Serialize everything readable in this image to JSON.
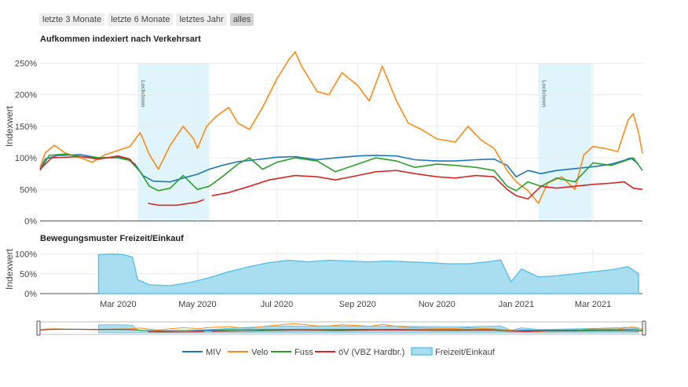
{
  "range_selector": {
    "buttons": [
      {
        "label": "letzte 3 Monate",
        "active": false
      },
      {
        "label": "letzte 6 Monate",
        "active": false
      },
      {
        "label": "letztes Jahr",
        "active": false
      },
      {
        "label": "alles",
        "active": true
      }
    ]
  },
  "colors": {
    "miv": "#1f77b4",
    "velo": "#ff8c1a",
    "fuss": "#2ca02c",
    "oev": "#d62728",
    "freizeit": "#5bc0e6",
    "freizeit_fill": "#a9def1",
    "lockdown": "#dff5fb",
    "grid": "#ececec"
  },
  "chart_data": [
    {
      "type": "line",
      "title": "Aufkommen indexiert nach Verkehrsart",
      "ylabel": "Indexwert",
      "ylim": [
        0,
        275
      ],
      "y_ticks": [
        {
          "v": 0,
          "label": "0%"
        },
        {
          "v": 50,
          "label": "50%"
        },
        {
          "v": 100,
          "label": "100%"
        },
        {
          "v": 150,
          "label": "150%"
        },
        {
          "v": 200,
          "label": "200%"
        },
        {
          "v": 250,
          "label": "250%"
        }
      ],
      "x_ticks": [
        {
          "date": "2020-03-01",
          "label": "Mar 2020"
        },
        {
          "date": "2020-05-01",
          "label": "May 2020"
        },
        {
          "date": "2020-07-01",
          "label": "Jul 2020"
        },
        {
          "date": "2020-09-01",
          "label": "Sep 2020"
        },
        {
          "date": "2020-11-01",
          "label": "Nov 2020"
        },
        {
          "date": "2021-01-01",
          "label": "Jan 2021"
        },
        {
          "date": "2021-03-01",
          "label": "Mar 2021"
        }
      ],
      "shapes": [
        {
          "x0": "2020-03-16",
          "x1": "2020-05-10",
          "label": "Lockdown"
        },
        {
          "x0": "2021-01-18",
          "x1": "2021-02-28",
          "label": "Lockdown"
        }
      ],
      "series": [
        {
          "name": "MIV",
          "color_key": "miv",
          "points": [
            [
              "2020-01-01",
              82
            ],
            [
              "2020-01-05",
              98
            ],
            [
              "2020-01-15",
              104
            ],
            [
              "2020-02-01",
              105
            ],
            [
              "2020-02-15",
              100
            ],
            [
              "2020-03-01",
              101
            ],
            [
              "2020-03-08",
              98
            ],
            [
              "2020-03-14",
              90
            ],
            [
              "2020-03-20",
              72
            ],
            [
              "2020-03-28",
              63
            ],
            [
              "2020-04-10",
              62
            ],
            [
              "2020-04-20",
              68
            ],
            [
              "2020-05-01",
              74
            ],
            [
              "2020-05-10",
              82
            ],
            [
              "2020-05-20",
              88
            ],
            [
              "2020-06-01",
              94
            ],
            [
              "2020-06-15",
              97
            ],
            [
              "2020-07-01",
              101
            ],
            [
              "2020-07-15",
              102
            ],
            [
              "2020-08-01",
              97
            ],
            [
              "2020-08-15",
              100
            ],
            [
              "2020-09-01",
              103
            ],
            [
              "2020-09-15",
              104
            ],
            [
              "2020-10-01",
              103
            ],
            [
              "2020-10-15",
              97
            ],
            [
              "2020-11-01",
              95
            ],
            [
              "2020-11-15",
              95
            ],
            [
              "2020-12-01",
              97
            ],
            [
              "2020-12-15",
              98
            ],
            [
              "2020-12-25",
              88
            ],
            [
              "2021-01-01",
              70
            ],
            [
              "2021-01-10",
              80
            ],
            [
              "2021-01-20",
              75
            ],
            [
              "2021-02-01",
              80
            ],
            [
              "2021-02-15",
              83
            ],
            [
              "2021-03-01",
              86
            ],
            [
              "2021-03-15",
              90
            ],
            [
              "2021-03-25",
              96
            ],
            [
              "2021-03-30",
              100
            ],
            [
              "2021-04-05",
              90
            ]
          ]
        },
        {
          "name": "Velo",
          "color_key": "velo",
          "points": [
            [
              "2020-01-01",
              85
            ],
            [
              "2020-01-05",
              108
            ],
            [
              "2020-01-12",
              120
            ],
            [
              "2020-01-20",
              108
            ],
            [
              "2020-02-01",
              100
            ],
            [
              "2020-02-10",
              93
            ],
            [
              "2020-02-20",
              105
            ],
            [
              "2020-03-01",
              112
            ],
            [
              "2020-03-10",
              118
            ],
            [
              "2020-03-18",
              140
            ],
            [
              "2020-03-25",
              105
            ],
            [
              "2020-04-01",
              82
            ],
            [
              "2020-04-10",
              120
            ],
            [
              "2020-04-20",
              150
            ],
            [
              "2020-04-28",
              130
            ],
            [
              "2020-05-01",
              115
            ],
            [
              "2020-05-08",
              150
            ],
            [
              "2020-05-15",
              165
            ],
            [
              "2020-05-25",
              180
            ],
            [
              "2020-06-01",
              155
            ],
            [
              "2020-06-10",
              145
            ],
            [
              "2020-06-20",
              180
            ],
            [
              "2020-07-01",
              225
            ],
            [
              "2020-07-10",
              255
            ],
            [
              "2020-07-15",
              268
            ],
            [
              "2020-07-20",
              245
            ],
            [
              "2020-08-01",
              205
            ],
            [
              "2020-08-10",
              200
            ],
            [
              "2020-08-20",
              235
            ],
            [
              "2020-09-01",
              215
            ],
            [
              "2020-09-10",
              190
            ],
            [
              "2020-09-20",
              245
            ],
            [
              "2020-10-01",
              190
            ],
            [
              "2020-10-10",
              155
            ],
            [
              "2020-10-20",
              145
            ],
            [
              "2020-11-01",
              130
            ],
            [
              "2020-11-15",
              125
            ],
            [
              "2020-11-25",
              150
            ],
            [
              "2020-12-05",
              128
            ],
            [
              "2020-12-15",
              115
            ],
            [
              "2020-12-25",
              80
            ],
            [
              "2021-01-01",
              62
            ],
            [
              "2021-01-10",
              48
            ],
            [
              "2021-01-18",
              28
            ],
            [
              "2021-01-25",
              60
            ],
            [
              "2021-02-05",
              70
            ],
            [
              "2021-02-15",
              50
            ],
            [
              "2021-02-22",
              105
            ],
            [
              "2021-03-01",
              118
            ],
            [
              "2021-03-10",
              115
            ],
            [
              "2021-03-20",
              110
            ],
            [
              "2021-03-28",
              160
            ],
            [
              "2021-04-01",
              170
            ],
            [
              "2021-04-05",
              140
            ],
            [
              "2021-04-08",
              107
            ]
          ]
        },
        {
          "name": "Fuss",
          "color_key": "fuss",
          "points": [
            [
              "2020-01-01",
              80
            ],
            [
              "2020-01-08",
              104
            ],
            [
              "2020-01-20",
              106
            ],
            [
              "2020-02-01",
              102
            ],
            [
              "2020-02-15",
              100
            ],
            [
              "2020-03-01",
              100
            ],
            [
              "2020-03-10",
              96
            ],
            [
              "2020-03-18",
              78
            ],
            [
              "2020-03-25",
              55
            ],
            [
              "2020-04-01",
              48
            ],
            [
              "2020-04-10",
              52
            ],
            [
              "2020-04-20",
              72
            ],
            [
              "2020-05-01",
              50
            ],
            [
              "2020-05-10",
              55
            ],
            [
              "2020-05-20",
              70
            ],
            [
              "2020-06-01",
              90
            ],
            [
              "2020-06-10",
              100
            ],
            [
              "2020-06-20",
              82
            ],
            [
              "2020-07-01",
              93
            ],
            [
              "2020-07-15",
              100
            ],
            [
              "2020-08-01",
              95
            ],
            [
              "2020-08-15",
              78
            ],
            [
              "2020-09-01",
              90
            ],
            [
              "2020-09-15",
              100
            ],
            [
              "2020-10-01",
              95
            ],
            [
              "2020-10-15",
              85
            ],
            [
              "2020-11-01",
              90
            ],
            [
              "2020-11-15",
              88
            ],
            [
              "2020-12-01",
              85
            ],
            [
              "2020-12-15",
              80
            ],
            [
              "2020-12-25",
              55
            ],
            [
              "2021-01-01",
              48
            ],
            [
              "2021-01-10",
              62
            ],
            [
              "2021-01-20",
              55
            ],
            [
              "2021-02-01",
              68
            ],
            [
              "2021-02-15",
              62
            ],
            [
              "2021-03-01",
              92
            ],
            [
              "2021-03-15",
              88
            ],
            [
              "2021-03-25",
              95
            ],
            [
              "2021-04-01",
              100
            ],
            [
              "2021-04-08",
              80
            ]
          ]
        },
        {
          "name": "öV (VBZ Hardbr.)",
          "color_key": "oev",
          "segments": [
            [
              [
                "2020-01-01",
                82
              ],
              [
                "2020-01-10",
                100
              ],
              [
                "2020-02-01",
                102
              ],
              [
                "2020-02-15",
                98
              ],
              [
                "2020-03-01",
                103
              ],
              [
                "2020-03-10",
                98
              ],
              [
                "2020-03-14",
                88
              ]
            ],
            [
              [
                "2020-03-24",
                28
              ],
              [
                "2020-04-01",
                25
              ],
              [
                "2020-04-15",
                25
              ],
              [
                "2020-05-01",
                30
              ],
              [
                "2020-05-06",
                34
              ]
            ],
            [
              [
                "2020-05-12",
                40
              ],
              [
                "2020-05-25",
                45
              ],
              [
                "2020-06-10",
                55
              ],
              [
                "2020-06-25",
                65
              ],
              [
                "2020-07-15",
                72
              ],
              [
                "2020-08-01",
                70
              ],
              [
                "2020-08-15",
                65
              ],
              [
                "2020-09-01",
                72
              ],
              [
                "2020-09-15",
                78
              ],
              [
                "2020-10-01",
                80
              ],
              [
                "2020-10-15",
                75
              ],
              [
                "2020-11-01",
                70
              ],
              [
                "2020-11-15",
                68
              ],
              [
                "2020-12-01",
                72
              ],
              [
                "2020-12-15",
                70
              ],
              [
                "2020-12-25",
                50
              ],
              [
                "2021-01-01",
                40
              ],
              [
                "2021-01-10",
                35
              ],
              [
                "2021-01-20",
                55
              ],
              [
                "2021-02-01",
                52
              ],
              [
                "2021-02-15",
                55
              ],
              [
                "2021-03-01",
                58
              ],
              [
                "2021-03-15",
                60
              ],
              [
                "2021-03-25",
                62
              ],
              [
                "2021-04-01",
                52
              ],
              [
                "2021-04-08",
                50
              ]
            ]
          ]
        }
      ]
    },
    {
      "type": "area",
      "title": "Bewegungsmuster Freizeit/Einkauf",
      "ylabel": "Indexwert",
      "ylim": [
        0,
        115
      ],
      "y_ticks": [
        {
          "v": 0,
          "label": "0%"
        },
        {
          "v": 50,
          "label": "50%"
        },
        {
          "v": 100,
          "label": "100%"
        }
      ],
      "series": [
        {
          "name": "Freizeit/Einkauf",
          "color_key": "freizeit",
          "points": [
            [
              "2020-02-15",
              98
            ],
            [
              "2020-02-25",
              100
            ],
            [
              "2020-03-05",
              98
            ],
            [
              "2020-03-12",
              92
            ],
            [
              "2020-03-16",
              35
            ],
            [
              "2020-03-25",
              22
            ],
            [
              "2020-04-10",
              20
            ],
            [
              "2020-04-25",
              28
            ],
            [
              "2020-05-10",
              40
            ],
            [
              "2020-05-25",
              55
            ],
            [
              "2020-06-10",
              68
            ],
            [
              "2020-06-25",
              78
            ],
            [
              "2020-07-10",
              84
            ],
            [
              "2020-07-25",
              80
            ],
            [
              "2020-08-10",
              84
            ],
            [
              "2020-08-25",
              82
            ],
            [
              "2020-09-10",
              80
            ],
            [
              "2020-09-25",
              82
            ],
            [
              "2020-10-10",
              80
            ],
            [
              "2020-10-25",
              78
            ],
            [
              "2020-11-10",
              75
            ],
            [
              "2020-11-25",
              75
            ],
            [
              "2020-12-10",
              80
            ],
            [
              "2020-12-20",
              85
            ],
            [
              "2020-12-28",
              30
            ],
            [
              "2021-01-05",
              62
            ],
            [
              "2021-01-18",
              42
            ],
            [
              "2021-02-01",
              45
            ],
            [
              "2021-02-15",
              50
            ],
            [
              "2021-03-01",
              55
            ],
            [
              "2021-03-15",
              60
            ],
            [
              "2021-03-28",
              68
            ],
            [
              "2021-04-05",
              50
            ]
          ]
        }
      ]
    }
  ],
  "legend": [
    {
      "label": "MIV",
      "color_key": "miv",
      "kind": "line"
    },
    {
      "label": "Velo",
      "color_key": "velo",
      "kind": "line"
    },
    {
      "label": "Fuss",
      "color_key": "fuss",
      "kind": "line"
    },
    {
      "label": "öV (VBZ Hardbr.)",
      "color_key": "oev",
      "kind": "line"
    },
    {
      "label": "Freizeit/Einkauf",
      "color_key": "freizeit",
      "kind": "area"
    }
  ]
}
